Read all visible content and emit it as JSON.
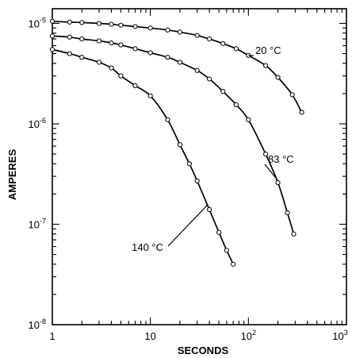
{
  "chart_data": {
    "type": "line",
    "title": "",
    "xlabel": "SECONDS",
    "ylabel": "AMPERES",
    "x_scale": "log",
    "y_scale": "log",
    "xlim": [
      1,
      1000
    ],
    "ylim": [
      1e-08,
      1.4e-05
    ],
    "grid": false,
    "x_tick_labels": [
      {
        "value": 1,
        "base": "1",
        "exp": ""
      },
      {
        "value": 10,
        "base": "10",
        "exp": ""
      },
      {
        "value": 100,
        "base": "10",
        "exp": "2"
      },
      {
        "value": 1000,
        "base": "10",
        "exp": "3"
      }
    ],
    "y_tick_labels": [
      {
        "value": 1e-05,
        "base": "10",
        "exp": "-5"
      },
      {
        "value": 1e-06,
        "base": "10",
        "exp": "-6"
      },
      {
        "value": 1e-07,
        "base": "10",
        "exp": "-7"
      },
      {
        "value": 1e-08,
        "base": "10",
        "exp": "-8"
      }
    ],
    "series": [
      {
        "name": "20 °C",
        "x": [
          1,
          1.5,
          2,
          3,
          4,
          5,
          7,
          10,
          15,
          20,
          30,
          40,
          55,
          75,
          100,
          150,
          200,
          280,
          350
        ],
        "y": [
          1.05e-05,
          1.03e-05,
          1.02e-05,
          1e-05,
          9.8e-06,
          9.6e-06,
          9.3e-06,
          9e-06,
          8.6e-06,
          8.2e-06,
          7.6e-06,
          7e-06,
          6.3e-06,
          5.6e-06,
          4.8e-06,
          3.8e-06,
          2.9e-06,
          1.95e-06,
          1.3e-06
        ]
      },
      {
        "name": "83 °C",
        "x": [
          1,
          1.5,
          2,
          3,
          4,
          5,
          7,
          10,
          15,
          20,
          30,
          40,
          55,
          75,
          100,
          150,
          200,
          250,
          290
        ],
        "y": [
          7.5e-06,
          7.3e-06,
          7e-06,
          6.7e-06,
          6.4e-06,
          6.1e-06,
          5.6e-06,
          5.1e-06,
          4.6e-06,
          4.1e-06,
          3.4e-06,
          2.8e-06,
          2.1e-06,
          1.55e-06,
          1.1e-06,
          5e-07,
          2.6e-07,
          1.3e-07,
          8e-08
        ]
      },
      {
        "name": "140 °C",
        "x": [
          1,
          1.5,
          2,
          3,
          4,
          5,
          7,
          10,
          15,
          20,
          25,
          30,
          40,
          50,
          60,
          70
        ],
        "y": [
          5.5e-06,
          5e-06,
          4.6e-06,
          4.1e-06,
          3.6e-06,
          3e-06,
          2.4e-06,
          1.9e-06,
          1.1e-06,
          6.2e-07,
          4e-07,
          2.7e-07,
          1.4e-07,
          8.3e-08,
          5.5e-08,
          4e-08
        ]
      }
    ],
    "annotations": [
      {
        "label": "20 °C",
        "series": 0
      },
      {
        "label": "83 °C",
        "series": 1
      },
      {
        "label": "140 °C",
        "series": 2
      }
    ]
  }
}
